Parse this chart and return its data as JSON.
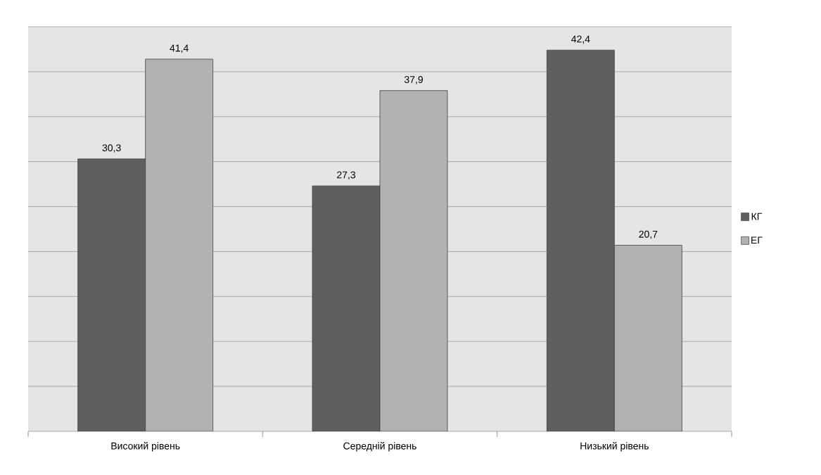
{
  "chart_data": {
    "type": "bar",
    "categories": [
      "Високий рівень",
      "Середній рівень",
      "Низький рівень"
    ],
    "series": [
      {
        "name": "КГ",
        "color": "#5f5f5f",
        "values": [
          30.3,
          27.3,
          42.4
        ],
        "value_labels": [
          "30,3",
          "27,3",
          "42,4"
        ]
      },
      {
        "name": "ЕГ",
        "color": "#b2b2b2",
        "values": [
          41.4,
          37.9,
          20.7
        ],
        "value_labels": [
          "41,4",
          "37,9",
          "20,7"
        ]
      }
    ],
    "ylim": [
      0,
      45
    ],
    "yticks": [
      {
        "value": 0,
        "label": null
      },
      {
        "value": 5,
        "label": null
      },
      {
        "value": 10,
        "label": null
      },
      {
        "value": 15,
        "label": null
      },
      {
        "value": 20,
        "label": null
      },
      {
        "value": 25,
        "label": null
      },
      {
        "value": 30,
        "label": null
      },
      {
        "value": 35,
        "label": null
      },
      {
        "value": 40,
        "label": null
      },
      {
        "value": 45,
        "label": null
      }
    ],
    "tick_labels": "x",
    "grid": "y",
    "legend": "right"
  }
}
